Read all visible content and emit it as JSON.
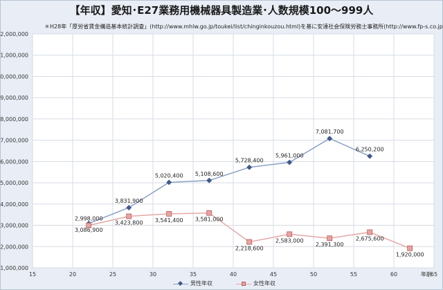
{
  "title": "【年収】愛知･E27業務用機械器具製造業･人数規模100～999人",
  "subtitle": "＊H28年「厚労省賃金構造基本統計調査」(http://www.mhlw.go.jp/toukei/list/chinginkouzou.html)を基に安達社会保険労務士事務所(http://www.fp-s.co.jp)が作成",
  "xunit": "年齢",
  "colors": {
    "male": "#3d5a8a",
    "male_line": "#8aa0c4",
    "female": "#e6a5a3",
    "female_line": "#e3a8a6",
    "grid": "#d6dbe3"
  },
  "chart_data": {
    "type": "line",
    "x_range": [
      15,
      65
    ],
    "x_ticks": [
      15,
      20,
      25,
      30,
      35,
      40,
      45,
      50,
      55,
      60,
      65
    ],
    "y_range": [
      1000000,
      12000000
    ],
    "y_ticks": [
      "1,000,000",
      "2,000,000",
      "3,000,000",
      "4,000,000",
      "5,000,000",
      "6,000,000",
      "7,000,000",
      "8,000,000",
      "9,000,000",
      "10,000,000",
      "11,000,000",
      "12,000,000"
    ],
    "grid": true,
    "legend": "bottom",
    "series": [
      {
        "name": "男性年収",
        "x": [
          22,
          27,
          32,
          37,
          42,
          47,
          52,
          57
        ],
        "y": [
          3086900,
          3831900,
          5020400,
          5108600,
          5728400,
          5961000,
          7081700,
          6250200
        ],
        "labels": [
          "3,086,900",
          "3,831,900",
          "5,020,400",
          "5,108,600",
          "5,728,400",
          "5,961,000",
          "7,081,700",
          "6,250,200"
        ]
      },
      {
        "name": "女性年収",
        "x": [
          22,
          27,
          32,
          37,
          42,
          47,
          52,
          57,
          62
        ],
        "y": [
          2998000,
          3423800,
          3541400,
          3581000,
          2218600,
          2583000,
          2391300,
          2675600,
          1920000
        ],
        "labels": [
          "2,998,000",
          "3,423,800",
          "3,541,400",
          "3,581,000",
          "2,218,600",
          "2,583,000",
          "2,391,300",
          "2,675,600",
          "1,920,000"
        ]
      }
    ]
  }
}
